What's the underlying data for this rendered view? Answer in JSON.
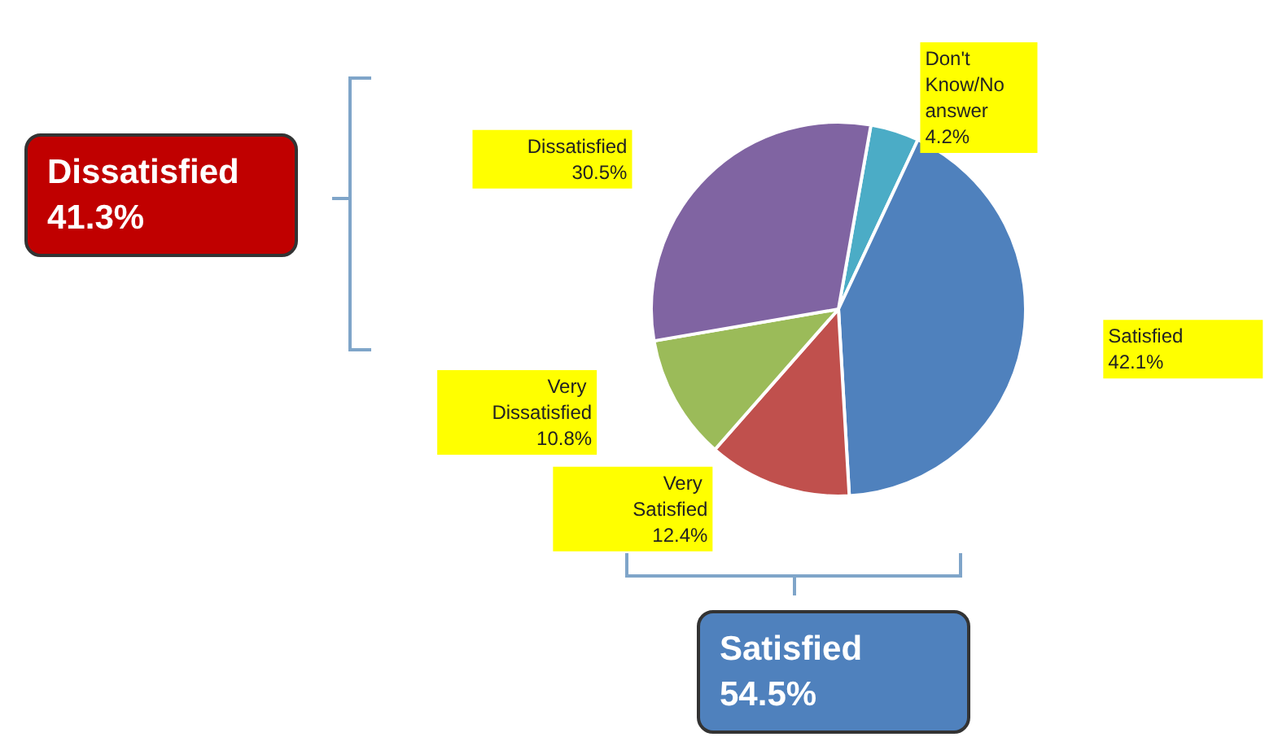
{
  "chart_data": {
    "type": "pie",
    "categories": [
      "Don't Know/No answer",
      "Satisfied",
      "Very Satisfied",
      "Very Dissatisfied",
      "Dissatisfied"
    ],
    "values": [
      4.2,
      42.1,
      12.4,
      10.8,
      30.5
    ],
    "colors": [
      "#4bacc6",
      "#4f81bd",
      "#c0504d",
      "#9bbb59",
      "#8064a2"
    ],
    "value_labels": [
      "4.2%",
      "42.1%",
      "12.4%",
      "10.8%",
      "30.5%"
    ],
    "legend": false,
    "annotations": [
      "Dissatisfied 41.3%",
      "Satisfied 54.5%"
    ]
  }
}
